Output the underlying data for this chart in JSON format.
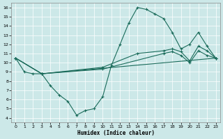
{
  "bg_color": "#cce8e8",
  "line_color": "#1a6b5a",
  "xlabel": "Humidex (Indice chaleur)",
  "xlim": [
    -0.5,
    23.5
  ],
  "ylim": [
    3.5,
    16.5
  ],
  "xticks": [
    0,
    1,
    2,
    3,
    4,
    5,
    6,
    7,
    8,
    9,
    10,
    11,
    12,
    13,
    14,
    15,
    16,
    17,
    18,
    19,
    20,
    21,
    22,
    23
  ],
  "yticks": [
    4,
    5,
    6,
    7,
    8,
    9,
    10,
    11,
    12,
    13,
    14,
    15,
    16
  ],
  "lines": [
    {
      "x": [
        0,
        1,
        2,
        3,
        4,
        5,
        6,
        7,
        8,
        9,
        10,
        11,
        12,
        13,
        14,
        15,
        16,
        17,
        18,
        19,
        20,
        21,
        22,
        23
      ],
      "y": [
        10.5,
        9.0,
        8.8,
        8.8,
        7.5,
        6.5,
        5.8,
        4.3,
        4.8,
        5.0,
        6.3,
        9.7,
        12.0,
        14.3,
        16.0,
        15.8,
        15.3,
        14.8,
        13.3,
        11.5,
        12.0,
        13.3,
        11.8,
        10.5
      ]
    },
    {
      "x": [
        0,
        3,
        10,
        14,
        17,
        18,
        19,
        20,
        21,
        22,
        23
      ],
      "y": [
        10.5,
        8.8,
        9.5,
        11.0,
        11.3,
        11.5,
        11.2,
        10.2,
        11.8,
        11.3,
        10.5
      ]
    },
    {
      "x": [
        0,
        3,
        10,
        17,
        18,
        19,
        20,
        21,
        22,
        23
      ],
      "y": [
        10.5,
        8.8,
        9.3,
        11.0,
        11.2,
        10.8,
        10.0,
        11.3,
        10.8,
        10.5
      ]
    },
    {
      "x": [
        0,
        3,
        23
      ],
      "y": [
        10.5,
        8.8,
        10.5
      ]
    }
  ]
}
